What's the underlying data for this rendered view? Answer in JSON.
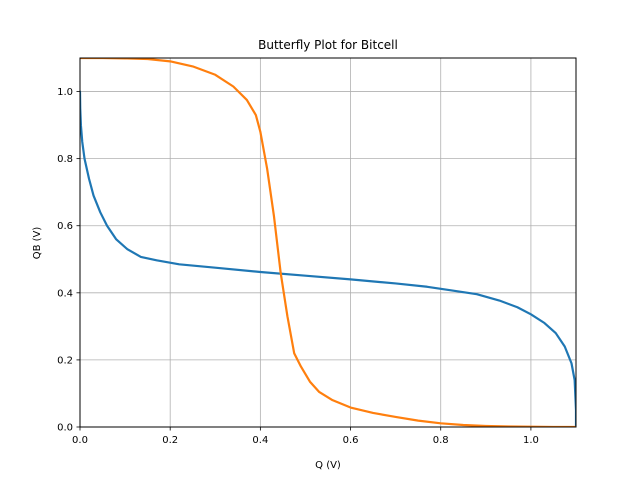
{
  "chart_data": {
    "type": "line",
    "title": "Butterfly Plot for Bitcell",
    "xlabel": "Q (V)",
    "ylabel": "QB (V)",
    "xlim": [
      0,
      1.1
    ],
    "ylim": [
      0,
      1.1
    ],
    "xticks": [
      0.0,
      0.2,
      0.4,
      0.6,
      0.8,
      1.0
    ],
    "xtick_labels": [
      "0.0",
      "0.2",
      "0.4",
      "0.6",
      "0.8",
      "1.0"
    ],
    "yticks": [
      0.0,
      0.2,
      0.4,
      0.6,
      0.8,
      1.0
    ],
    "ytick_labels": [
      "0.0",
      "0.2",
      "0.4",
      "0.6",
      "0.8",
      "1.0"
    ],
    "grid": true,
    "legend": false,
    "series": [
      {
        "color": "#1f77b4",
        "x": [
          0.0,
          0.0005,
          0.002,
          0.005,
          0.01,
          0.02,
          0.03,
          0.045,
          0.06,
          0.08,
          0.105,
          0.135,
          0.17,
          0.22,
          0.3,
          0.4,
          0.5,
          0.6,
          0.7,
          0.77,
          0.83,
          0.88,
          0.93,
          0.97,
          1.0,
          1.03,
          1.055,
          1.075,
          1.09,
          1.097,
          1.1,
          1.1
        ],
        "y": [
          1.0,
          0.95,
          0.9,
          0.85,
          0.8,
          0.74,
          0.69,
          0.64,
          0.6,
          0.56,
          0.53,
          0.507,
          0.497,
          0.485,
          0.475,
          0.462,
          0.451,
          0.44,
          0.428,
          0.418,
          0.406,
          0.396,
          0.377,
          0.357,
          0.336,
          0.31,
          0.28,
          0.24,
          0.19,
          0.14,
          0.05,
          0.0
        ]
      },
      {
        "color": "#ff7f0e",
        "x": [
          0.0,
          0.05,
          0.1,
          0.15,
          0.2,
          0.25,
          0.3,
          0.34,
          0.37,
          0.39,
          0.4,
          0.415,
          0.43,
          0.445,
          0.46,
          0.475,
          0.49,
          0.51,
          0.53,
          0.56,
          0.6,
          0.65,
          0.7,
          0.75,
          0.8,
          0.85,
          0.9,
          0.95,
          1.0,
          1.05,
          1.1
        ],
        "y": [
          1.1,
          1.1,
          1.099,
          1.097,
          1.09,
          1.075,
          1.05,
          1.015,
          0.975,
          0.93,
          0.88,
          0.77,
          0.63,
          0.46,
          0.33,
          0.22,
          0.18,
          0.135,
          0.105,
          0.08,
          0.058,
          0.042,
          0.03,
          0.019,
          0.011,
          0.006,
          0.003,
          0.0015,
          0.0007,
          0.0002,
          0.0
        ]
      }
    ]
  }
}
